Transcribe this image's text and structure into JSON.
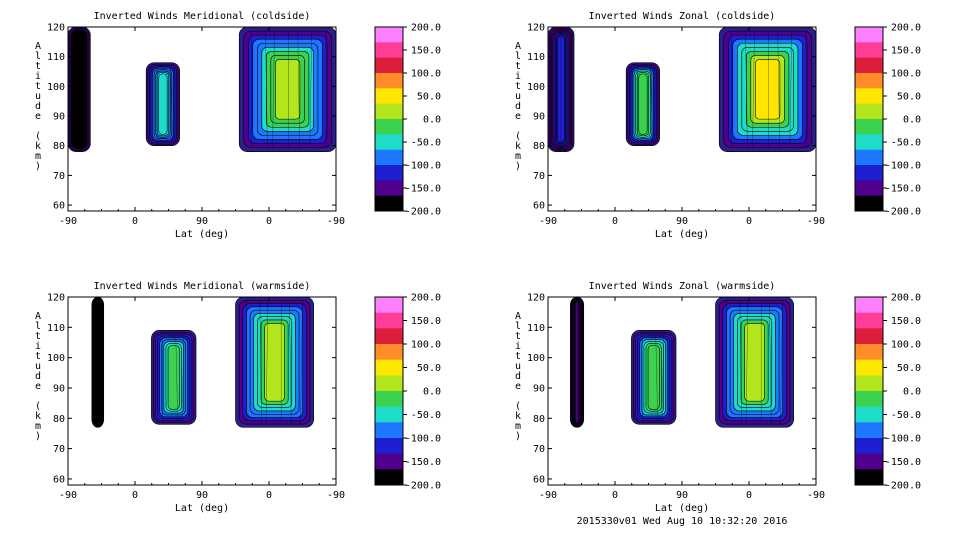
{
  "footer": {
    "stamp": "2015330v01 Wed Aug 10 10:32:20 2016"
  },
  "colorbar": {
    "ticks": [
      "200.0",
      "150.0",
      "100.0",
      "50.0",
      "0.0",
      "-50.0",
      "-100.0",
      "-150.0",
      "-200.0"
    ],
    "colors": [
      "#ff80ff",
      "#ff3c96",
      "#dc1e3c",
      "#ff8c28",
      "#ffe600",
      "#b4e61e",
      "#3cd250",
      "#1edcc8",
      "#1e78ff",
      "#1e1ed2",
      "#50008c",
      "#000000"
    ]
  },
  "chart_data": [
    {
      "type": "contour",
      "title": "Inverted Winds Meridional (coldside)",
      "xlabel": "Lat (deg)",
      "ylabel": "Altitude (km)",
      "xticks": [
        "-90",
        "0",
        "90",
        "0",
        "-90"
      ],
      "yticks": [
        "60",
        "70",
        "80",
        "90",
        "100",
        "110",
        "120"
      ],
      "ylim": [
        58,
        120
      ],
      "zlim": [
        -200,
        200
      ],
      "blobs": [
        {
          "lat_start": -90,
          "lat_end": -60,
          "alt_bottom": 78,
          "alt_top": 120,
          "peak_value": -190
        },
        {
          "lat_start": 15,
          "lat_end": 60,
          "alt_bottom": 80,
          "alt_top": 108,
          "peak_value": -20
        },
        {
          "lat_start": 140,
          "lat_end": 270,
          "alt_bottom": 78,
          "alt_top": 120,
          "peak_value": 40
        }
      ]
    },
    {
      "type": "contour",
      "title": "Inverted Winds Zonal (coldside)",
      "xlabel": "Lat (deg)",
      "ylabel": "Altitude (km)",
      "xticks": [
        "-90",
        "0",
        "90",
        "0",
        "-90"
      ],
      "yticks": [
        "60",
        "70",
        "80",
        "90",
        "100",
        "110",
        "120"
      ],
      "ylim": [
        58,
        120
      ],
      "zlim": [
        -200,
        200
      ],
      "blobs": [
        {
          "lat_start": -90,
          "lat_end": -55,
          "alt_bottom": 78,
          "alt_top": 120,
          "peak_value": -110
        },
        {
          "lat_start": 15,
          "lat_end": 60,
          "alt_bottom": 80,
          "alt_top": 108,
          "peak_value": 10
        },
        {
          "lat_start": 140,
          "lat_end": 270,
          "alt_bottom": 78,
          "alt_top": 120,
          "peak_value": 60
        }
      ]
    },
    {
      "type": "contour",
      "title": "Inverted Winds Meridional (warmside)",
      "xlabel": "Lat (deg)",
      "ylabel": "Altitude (km)",
      "xticks": [
        "-90",
        "0",
        "90",
        "0",
        "-90"
      ],
      "yticks": [
        "60",
        "70",
        "80",
        "90",
        "100",
        "110",
        "120"
      ],
      "ylim": [
        58,
        120
      ],
      "zlim": [
        -200,
        200
      ],
      "blobs": [
        {
          "lat_start": -58,
          "lat_end": -42,
          "alt_bottom": 77,
          "alt_top": 120,
          "peak_value": -200
        },
        {
          "lat_start": 22,
          "lat_end": 82,
          "alt_bottom": 78,
          "alt_top": 109,
          "peak_value": -10
        },
        {
          "lat_start": 135,
          "lat_end": 240,
          "alt_bottom": 77,
          "alt_top": 120,
          "peak_value": 30
        }
      ]
    },
    {
      "type": "contour",
      "title": "Inverted Winds Zonal (warmside)",
      "xlabel": "Lat (deg)",
      "ylabel": "Altitude (km)",
      "xticks": [
        "-90",
        "0",
        "90",
        "0",
        "-90"
      ],
      "yticks": [
        "60",
        "70",
        "80",
        "90",
        "100",
        "110",
        "120"
      ],
      "ylim": [
        58,
        120
      ],
      "zlim": [
        -200,
        200
      ],
      "blobs": [
        {
          "lat_start": -60,
          "lat_end": -42,
          "alt_bottom": 77,
          "alt_top": 120,
          "peak_value": -130
        },
        {
          "lat_start": 22,
          "lat_end": 82,
          "alt_bottom": 78,
          "alt_top": 109,
          "peak_value": 20
        },
        {
          "lat_start": 135,
          "lat_end": 240,
          "alt_bottom": 77,
          "alt_top": 120,
          "peak_value": 30
        }
      ]
    }
  ]
}
